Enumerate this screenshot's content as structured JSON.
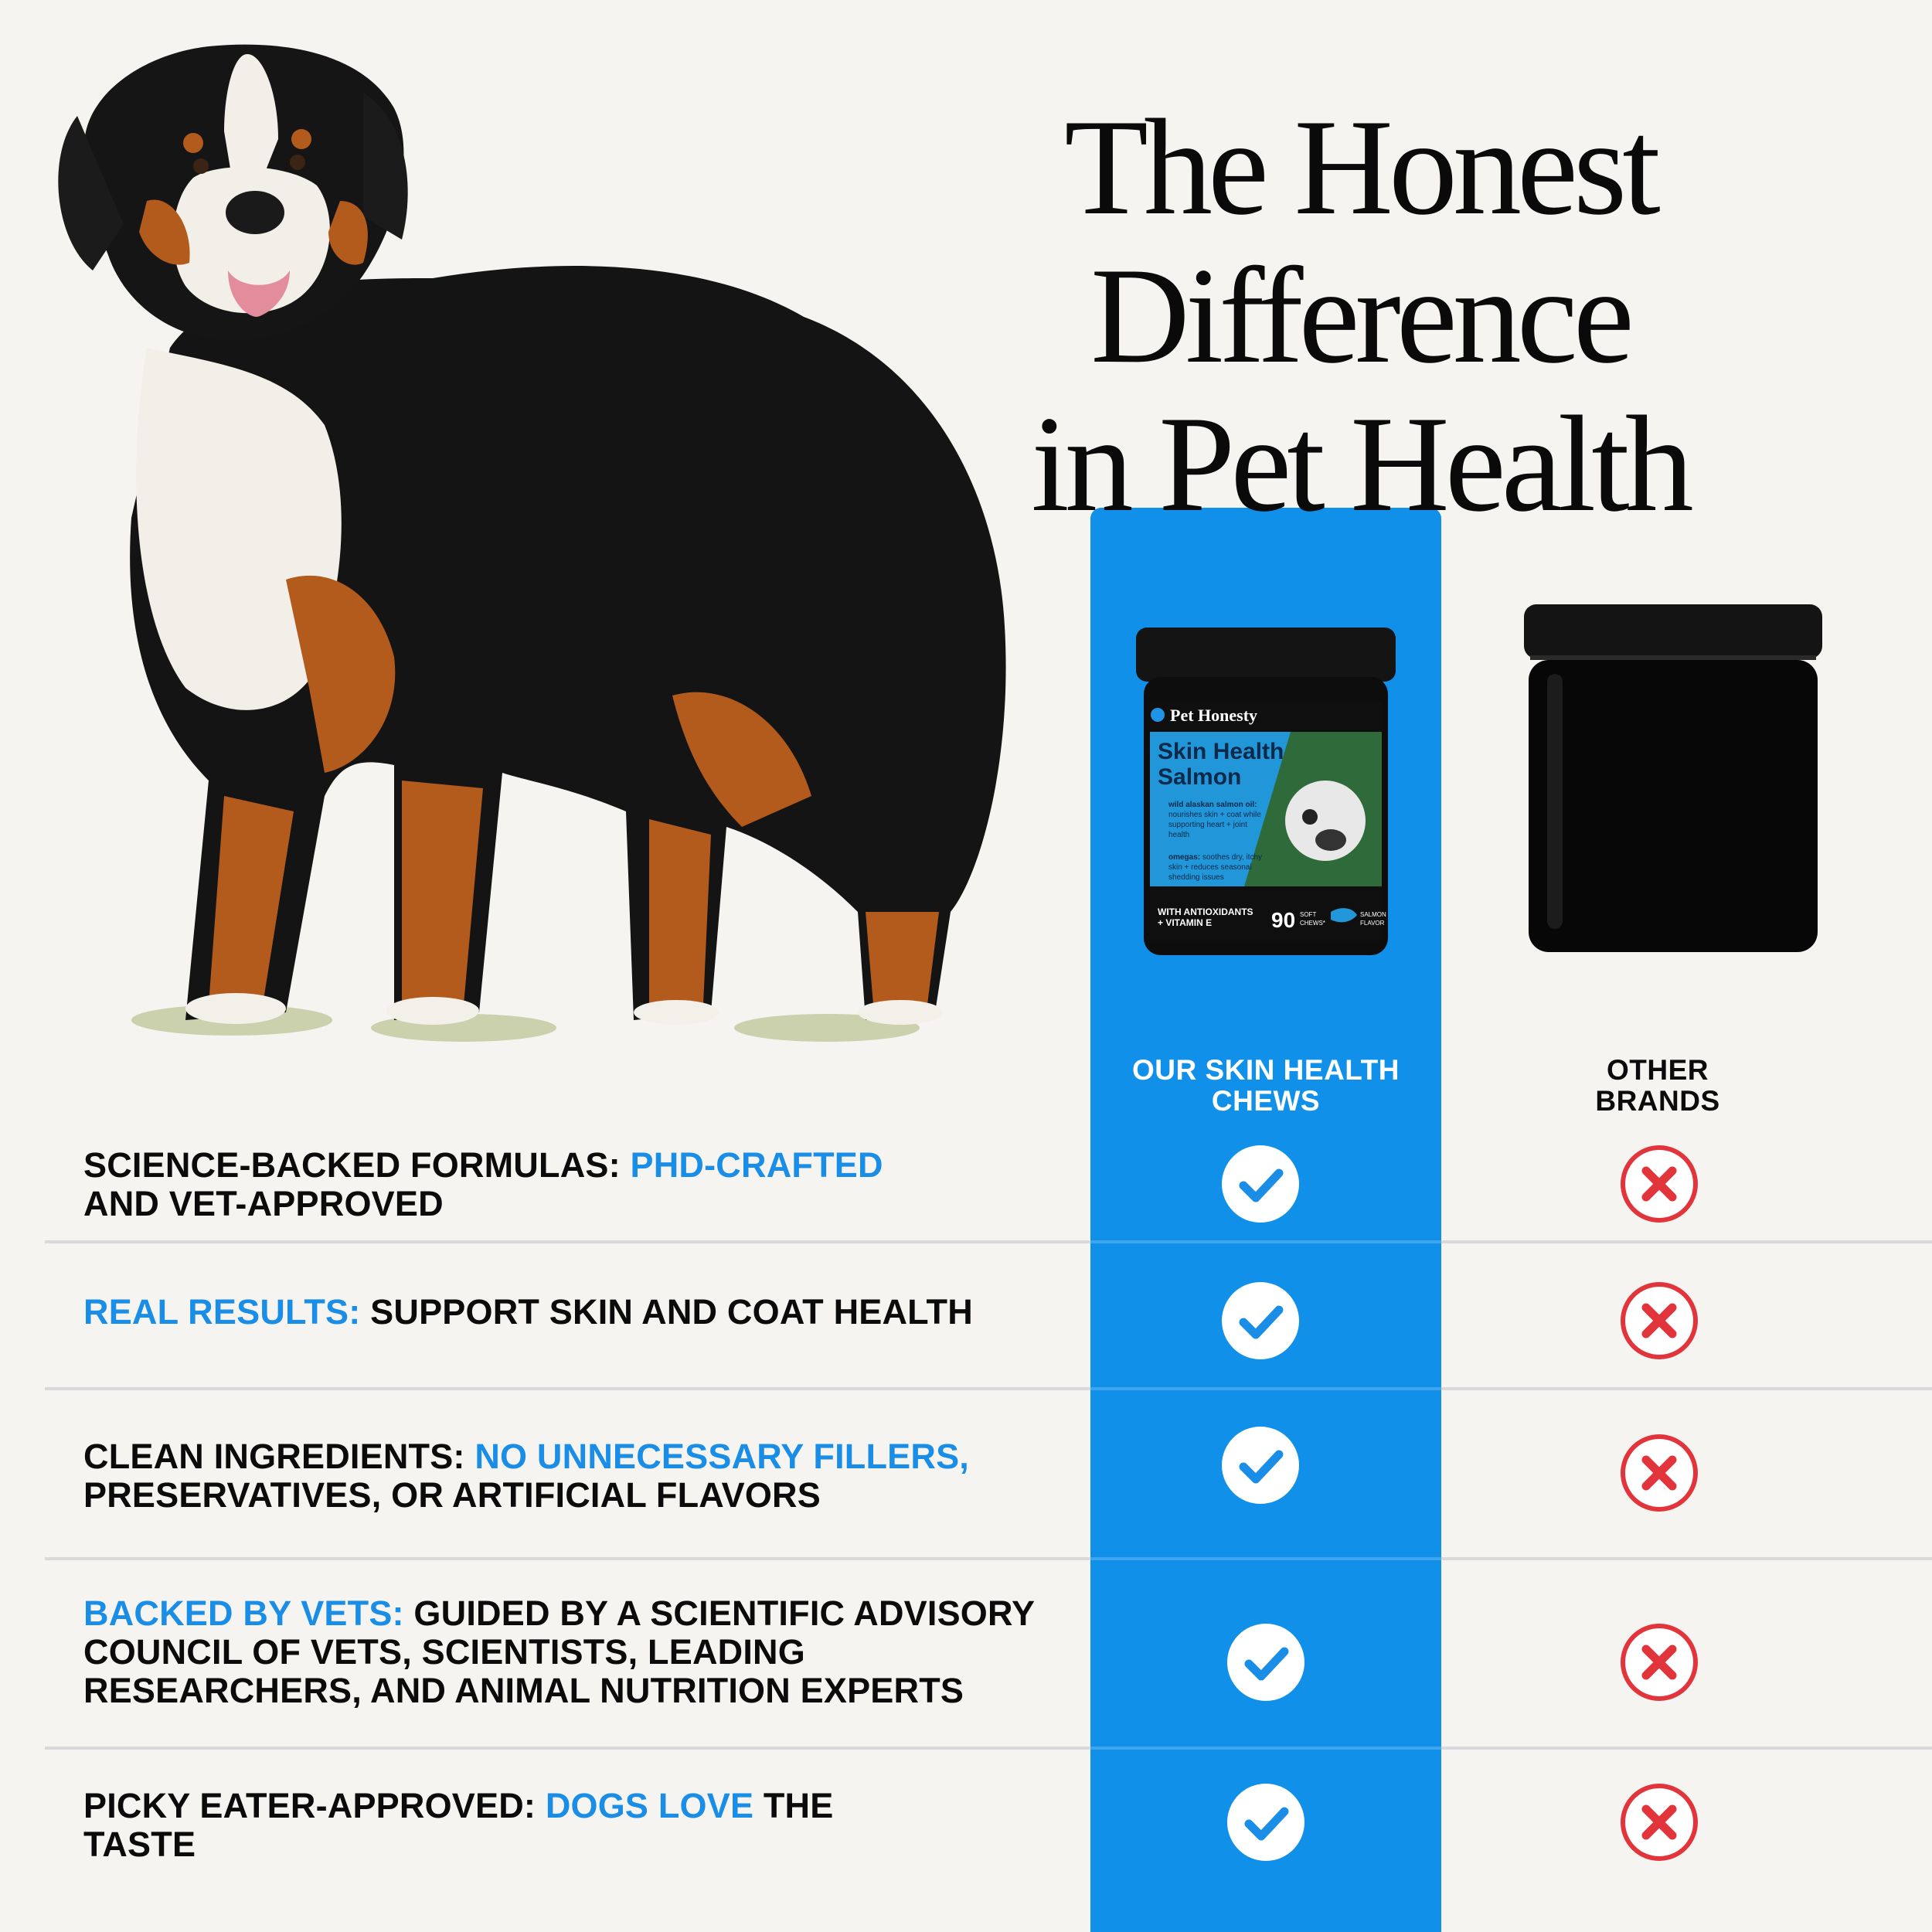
{
  "headline": {
    "line1": "The Honest Difference",
    "line2": "in Pet Health"
  },
  "product": {
    "brand": "Pet Honesty",
    "name_line1": "Skin Health",
    "name_line2": "Salmon",
    "benefit1_title": "wild alaskan salmon oil:",
    "benefit1_l1": "nourishes skin + coat while",
    "benefit1_l2": "supporting heart + joint",
    "benefit1_l3": "health",
    "benefit2_title": "omegas:",
    "benefit2_l1": "soothes dry, itchy",
    "benefit2_l2": "skin + reduces seasonal",
    "benefit2_l3": "shedding issues",
    "badge_l1": "WITH ANTIOXIDANTS",
    "badge_l2": "+ VITAMIN E",
    "count": "90",
    "count_l1": "SOFT",
    "count_l2": "CHEWS*",
    "flavor_l1": "SALMON",
    "flavor_l2": "FLAVOR"
  },
  "columns": {
    "ours_l1": "OUR SKIN HEALTH",
    "ours_l2": "CHEWS",
    "other_l1": "OTHER",
    "other_l2": "BRANDS"
  },
  "rows": [
    {
      "t1": "SCIENCE-BACKED FORMULAS: ",
      "t1b": "PHD-CRAFTED",
      "t2": "AND VET-APPROVED",
      "ours": "check-icon",
      "other": "x-icon"
    },
    {
      "h1": "REAL RESULTS:",
      "t1": " SUPPORT SKIN AND COAT HEALTH",
      "ours": "check-icon",
      "other": "x-icon"
    },
    {
      "t1": "CLEAN INGREDIENTS: ",
      "t1b": "NO UNNECESSARY FILLERS,",
      "t2": "PRESERVATIVES, OR ARTIFICIAL FLAVORS",
      "ours": "check-icon",
      "other": "x-icon"
    },
    {
      "h1": "BACKED BY VETS:",
      "t1": " GUIDED BY A SCIENTIFIC ADVISORY",
      "t2": "COUNCIL OF VETS, SCIENTISTS, LEADING",
      "t3": "RESEARCHERS, AND ANIMAL NUTRITION EXPERTS",
      "ours": "check-icon",
      "other": "x-icon"
    },
    {
      "t1": "PICKY EATER-APPROVED: ",
      "t1b": "DOGS LOVE",
      "t1c": " THE",
      "t2": "TASTE",
      "ours": "check-icon",
      "other": "x-icon"
    }
  ],
  "colors": {
    "accent_blue": "#1190ea",
    "text_highlight": "#1a8ee6",
    "x_red": "#e2353b",
    "background": "#f5f4f0"
  }
}
